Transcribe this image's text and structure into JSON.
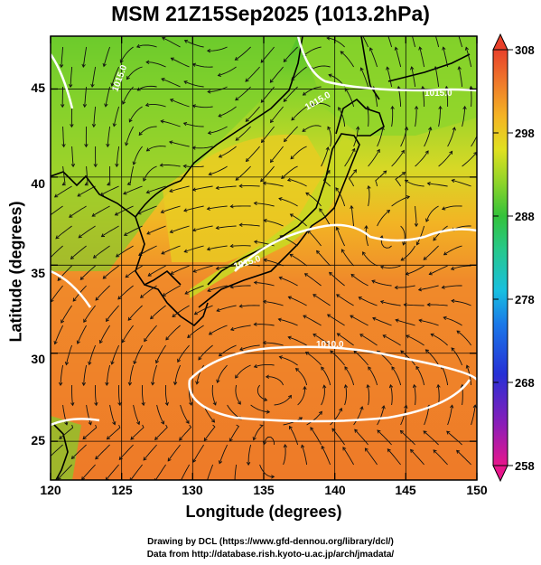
{
  "title": "MSM 21Z15Sep2025 (1013.2hPa)",
  "axes": {
    "xlabel": "Longitude (degrees)",
    "ylabel": "Latitude  (degrees)",
    "xticks": [
      "120",
      "125",
      "130",
      "135",
      "140",
      "145",
      "150"
    ],
    "yticks": [
      "45",
      "40",
      "35",
      "30",
      "25"
    ]
  },
  "colorbar": {
    "ticks": [
      "308",
      "298",
      "288",
      "278",
      "268",
      "258"
    ],
    "range": [
      258,
      308
    ],
    "colors": [
      "#e8168c",
      "#b4139f",
      "#7a1fc0",
      "#2b2fd6",
      "#1a73e8",
      "#18b7e6",
      "#25d0a8",
      "#2fc24a",
      "#7ed12a",
      "#d6e21a",
      "#f2c21a",
      "#f59a2a",
      "#ef6b2c",
      "#e8422a"
    ]
  },
  "map": {
    "lon_range": [
      120,
      150
    ],
    "lat_range": [
      22.8,
      48
    ],
    "pressure_labels": [
      "1015.0",
      "1015.0",
      "1015.0",
      "1010.0",
      "1015.0"
    ],
    "ocean_color": "#f08a2a",
    "north_color": "#7fd42a",
    "contour_color": "#ffffff"
  },
  "credits": {
    "line1": "Drawing by DCL (https://www.gfd-dennou.org/library/dcl/)",
    "line2": "Data from http://database.rish.kyoto-u.ac.jp/arch/jmadata/"
  }
}
